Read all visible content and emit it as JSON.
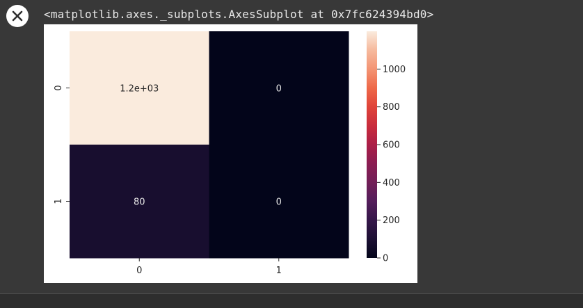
{
  "cell_output": {
    "clear_button_icon": "close-icon",
    "repr_text": "<matplotlib.axes._subplots.AxesSubplot at 0x7fc624394bd0>"
  },
  "chart_data": {
    "type": "heatmap",
    "rows": [
      "0",
      "1"
    ],
    "columns": [
      "0",
      "1"
    ],
    "values": [
      [
        1200,
        0
      ],
      [
        80,
        0
      ]
    ],
    "annotations": [
      [
        "1.2e+03",
        "0"
      ],
      [
        "80",
        "0"
      ]
    ],
    "colormap": "rocket",
    "colorbar": {
      "range": [
        0,
        1200
      ],
      "ticks": [
        0,
        200,
        400,
        600,
        800,
        1000
      ],
      "tick_labels": [
        "0",
        "200",
        "400",
        "600",
        "800",
        "1000"
      ]
    },
    "colors": {
      "max": "#faebdd",
      "low": "#2b1638",
      "zero": "#03051a",
      "annotation_light": "#e8e8e8",
      "annotation_dark": "#262626"
    },
    "xticklabels": [
      "0",
      "1"
    ],
    "yticklabels": [
      "0",
      "1"
    ],
    "title": "",
    "xlabel": "",
    "ylabel": ""
  }
}
